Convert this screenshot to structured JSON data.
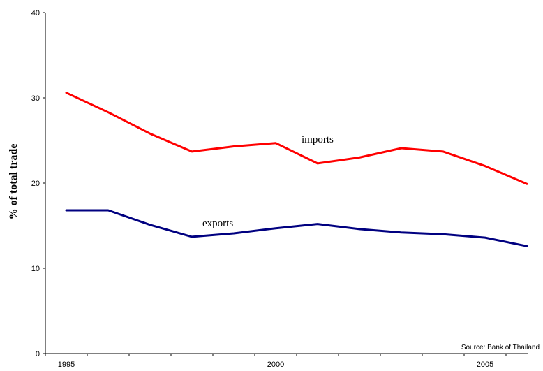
{
  "chart_data": {
    "type": "line",
    "x": [
      1995,
      1996,
      1997,
      1998,
      1999,
      2000,
      2001,
      2002,
      2003,
      2004,
      2005,
      2006
    ],
    "series": [
      {
        "name": "imports",
        "color": "#ff0000",
        "values": [
          30.6,
          28.3,
          25.8,
          23.7,
          24.3,
          24.7,
          22.3,
          23.0,
          24.1,
          23.7,
          22.0,
          19.9
        ]
      },
      {
        "name": "exports",
        "color": "#000080",
        "values": [
          16.8,
          16.8,
          15.1,
          13.7,
          14.1,
          14.7,
          15.2,
          14.6,
          14.2,
          14.0,
          13.6,
          12.6
        ]
      }
    ],
    "xlabel": "",
    "ylabel": "% of total trade",
    "ylim": [
      0,
      40
    ],
    "yticks": [
      0,
      10,
      20,
      30,
      40
    ],
    "xtick_labels": [
      "1995",
      "2000",
      "2005"
    ],
    "xtick_values": [
      1995,
      2000,
      2005
    ],
    "grid": false,
    "legend": "none",
    "source": "Source: Bank of Thailand"
  }
}
